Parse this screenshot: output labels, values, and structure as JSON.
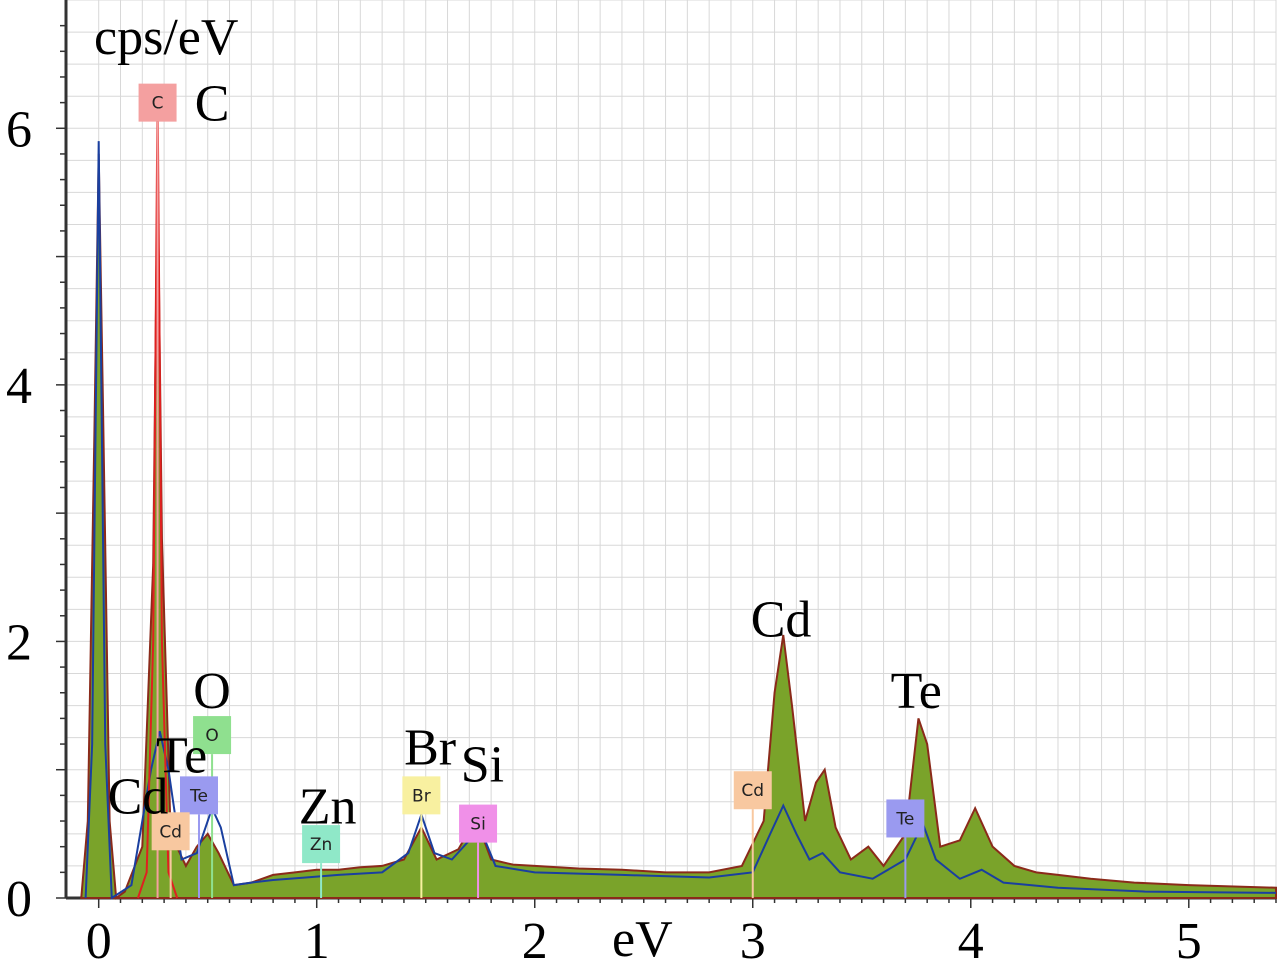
{
  "chart_data": {
    "type": "line",
    "ylabel": "cps/eV",
    "xlabel": "eV",
    "xlim": [
      -0.15,
      5.4
    ],
    "ylim": [
      0,
      7
    ],
    "grid": true,
    "x_ticks": [
      "0",
      "1",
      "2",
      "3",
      "4",
      "5"
    ],
    "y_ticks": [
      "0",
      "2",
      "4",
      "6"
    ],
    "colors": {
      "fill": "#7aa32a",
      "fill_outline": "#8b2a1a",
      "blue_line": "#1a3f9f",
      "red_line": "#e02020",
      "grid": "#d8d8d8"
    },
    "series": [
      {
        "style": "filled",
        "points": [
          [
            -0.08,
            0
          ],
          [
            -0.05,
            0.6
          ],
          [
            -0.02,
            3.6
          ],
          [
            0.0,
            5.8
          ],
          [
            0.02,
            3.8
          ],
          [
            0.05,
            0.6
          ],
          [
            0.08,
            0
          ],
          [
            0.12,
            0.05
          ],
          [
            0.2,
            0.4
          ],
          [
            0.25,
            2.6
          ],
          [
            0.27,
            5.7
          ],
          [
            0.29,
            2.8
          ],
          [
            0.33,
            0.5
          ],
          [
            0.4,
            0.25
          ],
          [
            0.45,
            0.4
          ],
          [
            0.5,
            0.5
          ],
          [
            0.55,
            0.35
          ],
          [
            0.62,
            0.1
          ],
          [
            0.7,
            0.12
          ],
          [
            0.8,
            0.18
          ],
          [
            0.9,
            0.2
          ],
          [
            1.0,
            0.22
          ],
          [
            1.1,
            0.22
          ],
          [
            1.2,
            0.24
          ],
          [
            1.3,
            0.25
          ],
          [
            1.4,
            0.3
          ],
          [
            1.48,
            0.55
          ],
          [
            1.55,
            0.3
          ],
          [
            1.65,
            0.38
          ],
          [
            1.73,
            0.62
          ],
          [
            1.8,
            0.3
          ],
          [
            1.9,
            0.26
          ],
          [
            2.0,
            0.25
          ],
          [
            2.2,
            0.23
          ],
          [
            2.4,
            0.22
          ],
          [
            2.6,
            0.2
          ],
          [
            2.8,
            0.2
          ],
          [
            2.95,
            0.25
          ],
          [
            3.05,
            0.6
          ],
          [
            3.1,
            1.6
          ],
          [
            3.14,
            2.05
          ],
          [
            3.18,
            1.5
          ],
          [
            3.24,
            0.6
          ],
          [
            3.29,
            0.9
          ],
          [
            3.33,
            1.0
          ],
          [
            3.38,
            0.55
          ],
          [
            3.45,
            0.3
          ],
          [
            3.53,
            0.4
          ],
          [
            3.6,
            0.25
          ],
          [
            3.7,
            0.5
          ],
          [
            3.76,
            1.4
          ],
          [
            3.8,
            1.2
          ],
          [
            3.86,
            0.4
          ],
          [
            3.95,
            0.45
          ],
          [
            4.02,
            0.7
          ],
          [
            4.1,
            0.4
          ],
          [
            4.2,
            0.25
          ],
          [
            4.3,
            0.2
          ],
          [
            4.4,
            0.18
          ],
          [
            4.55,
            0.15
          ],
          [
            4.75,
            0.12
          ],
          [
            5.0,
            0.1
          ],
          [
            5.4,
            0.08
          ]
        ]
      },
      {
        "style": "line",
        "points": [
          [
            -0.06,
            0
          ],
          [
            -0.03,
            1.2
          ],
          [
            0.0,
            5.9
          ],
          [
            0.03,
            1.2
          ],
          [
            0.06,
            0
          ],
          [
            0.15,
            0.1
          ],
          [
            0.24,
            1.0
          ],
          [
            0.28,
            1.3
          ],
          [
            0.32,
            1.0
          ],
          [
            0.38,
            0.3
          ],
          [
            0.45,
            0.35
          ],
          [
            0.52,
            0.7
          ],
          [
            0.56,
            0.55
          ],
          [
            0.62,
            0.1
          ],
          [
            0.7,
            0.12
          ],
          [
            0.8,
            0.14
          ],
          [
            0.95,
            0.16
          ],
          [
            1.1,
            0.18
          ],
          [
            1.3,
            0.2
          ],
          [
            1.42,
            0.35
          ],
          [
            1.48,
            0.65
          ],
          [
            1.54,
            0.35
          ],
          [
            1.62,
            0.3
          ],
          [
            1.7,
            0.45
          ],
          [
            1.76,
            0.5
          ],
          [
            1.82,
            0.25
          ],
          [
            2.0,
            0.2
          ],
          [
            2.4,
            0.18
          ],
          [
            2.8,
            0.16
          ],
          [
            3.0,
            0.2
          ],
          [
            3.08,
            0.5
          ],
          [
            3.14,
            0.72
          ],
          [
            3.2,
            0.5
          ],
          [
            3.26,
            0.3
          ],
          [
            3.32,
            0.35
          ],
          [
            3.4,
            0.2
          ],
          [
            3.55,
            0.15
          ],
          [
            3.7,
            0.3
          ],
          [
            3.78,
            0.58
          ],
          [
            3.84,
            0.3
          ],
          [
            3.95,
            0.15
          ],
          [
            4.05,
            0.22
          ],
          [
            4.15,
            0.12
          ],
          [
            4.4,
            0.08
          ],
          [
            4.8,
            0.05
          ],
          [
            5.4,
            0.04
          ]
        ]
      },
      {
        "style": "line",
        "points": [
          [
            0.18,
            0
          ],
          [
            0.22,
            0.2
          ],
          [
            0.25,
            2.0
          ],
          [
            0.27,
            6.3
          ],
          [
            0.29,
            2.0
          ],
          [
            0.32,
            0.2
          ],
          [
            0.36,
            0
          ]
        ]
      }
    ],
    "peak_labels": [
      {
        "text": "C",
        "x": 0.52,
        "y": 6.2
      },
      {
        "text": "O",
        "x": 0.52,
        "y": 1.62
      },
      {
        "text": "Te",
        "x": 0.38,
        "y": 1.12
      },
      {
        "text": "Cd",
        "x": 0.18,
        "y": 0.8
      },
      {
        "text": "Zn",
        "x": 1.05,
        "y": 0.72
      },
      {
        "text": "Br",
        "x": 1.52,
        "y": 1.18
      },
      {
        "text": "Si",
        "x": 1.76,
        "y": 1.05
      },
      {
        "text": "Cd",
        "x": 3.13,
        "y": 2.18
      },
      {
        "text": "Te",
        "x": 3.75,
        "y": 1.62
      }
    ],
    "element_tags": [
      {
        "text": "C",
        "x": 0.27,
        "y": 6.2,
        "color": "#f4a0a0"
      },
      {
        "text": "O",
        "x": 0.52,
        "y": 1.27,
        "color": "#8fe08f"
      },
      {
        "text": "Te",
        "x": 0.46,
        "y": 0.8,
        "color": "#9a9af0"
      },
      {
        "text": "Cd",
        "x": 0.33,
        "y": 0.52,
        "color": "#f8c8a0"
      },
      {
        "text": "Zn",
        "x": 1.02,
        "y": 0.42,
        "color": "#8fe8c8"
      },
      {
        "text": "Br",
        "x": 1.48,
        "y": 0.8,
        "color": "#f8f0a0"
      },
      {
        "text": "Si",
        "x": 1.74,
        "y": 0.58,
        "color": "#f090e8"
      },
      {
        "text": "Cd",
        "x": 3.0,
        "y": 0.84,
        "color": "#f8c8a0"
      },
      {
        "text": "Te",
        "x": 3.7,
        "y": 0.62,
        "color": "#9a9af0"
      }
    ]
  }
}
